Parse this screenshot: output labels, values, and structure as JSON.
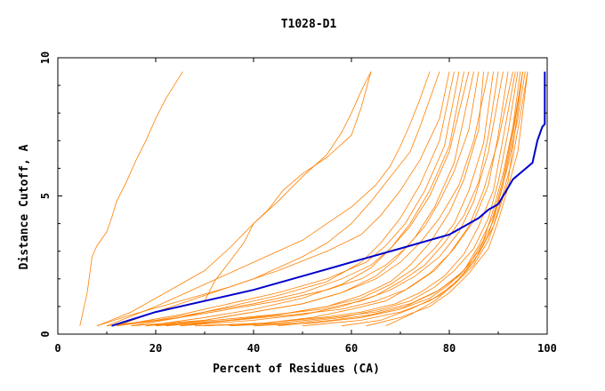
{
  "chart_data": {
    "type": "line",
    "title": "T1028-D1",
    "xlabel": "Percent of Residues (CA)",
    "ylabel": "Distance Cutoff, A",
    "xlim": [
      0,
      100
    ],
    "ylim": [
      0,
      10
    ],
    "xticks": [
      0,
      20,
      40,
      60,
      80,
      100
    ],
    "yticks": [
      0,
      5,
      10
    ],
    "grid": false,
    "legend": "none",
    "colors": {
      "highlight": "#0000cc",
      "others": "#ff8000"
    },
    "highlight": {
      "x": [
        11,
        20,
        30,
        40,
        50,
        60,
        70,
        80,
        83,
        86,
        88,
        90,
        91,
        92,
        93,
        95,
        97,
        98,
        99,
        99.5,
        99.5
      ],
      "y": [
        0.3,
        0.8,
        1.2,
        1.6,
        2.1,
        2.6,
        3.1,
        3.6,
        3.9,
        4.2,
        4.5,
        4.7,
        5.0,
        5.3,
        5.6,
        5.9,
        6.2,
        7.0,
        7.5,
        7.6,
        9.5
      ]
    },
    "others": [
      {
        "x": [
          4.5,
          6,
          7,
          8,
          10,
          11,
          12,
          14,
          16,
          18,
          20,
          22,
          25.5
        ],
        "y": [
          0.3,
          1.5,
          2.8,
          3.2,
          3.7,
          4.2,
          4.8,
          5.5,
          6.3,
          7.0,
          7.8,
          8.5,
          9.5
        ]
      },
      {
        "x": [
          8,
          15,
          22,
          30,
          35,
          40,
          45,
          50,
          55,
          58,
          60,
          62,
          64
        ],
        "y": [
          0.3,
          0.8,
          1.5,
          2.3,
          3.1,
          4.0,
          4.8,
          5.7,
          6.5,
          7.3,
          8.0,
          8.8,
          9.5
        ]
      },
      {
        "x": [
          30,
          32,
          35,
          38,
          40,
          43,
          46,
          50,
          55,
          60,
          62,
          64
        ],
        "y": [
          1.2,
          1.9,
          2.6,
          3.3,
          4.0,
          4.5,
          5.2,
          5.8,
          6.4,
          7.2,
          8.2,
          9.5
        ]
      },
      {
        "x": [
          10,
          20,
          30,
          40,
          50,
          55,
          60,
          65,
          68,
          70,
          72,
          74,
          76
        ],
        "y": [
          0.3,
          1.0,
          1.8,
          2.6,
          3.4,
          4.0,
          4.6,
          5.4,
          6.1,
          6.8,
          7.6,
          8.5,
          9.5
        ]
      },
      {
        "x": [
          12,
          20,
          30,
          40,
          50,
          55,
          60,
          64,
          68,
          72,
          74,
          76,
          78
        ],
        "y": [
          0.3,
          0.8,
          1.4,
          2.0,
          2.8,
          3.3,
          4.0,
          4.8,
          5.7,
          6.6,
          7.5,
          8.5,
          9.5
        ]
      },
      {
        "x": [
          8,
          15,
          25,
          35,
          45,
          55,
          62,
          66,
          70,
          74,
          78,
          80
        ],
        "y": [
          0.3,
          0.7,
          1.2,
          1.7,
          2.3,
          3.0,
          3.6,
          4.3,
          5.2,
          6.3,
          7.8,
          9.5
        ]
      },
      {
        "x": [
          15,
          25,
          35,
          45,
          55,
          62,
          66,
          70,
          74,
          78,
          81
        ],
        "y": [
          0.3,
          0.6,
          1.0,
          1.4,
          1.9,
          2.6,
          3.3,
          4.2,
          5.4,
          7.0,
          9.5
        ]
      },
      {
        "x": [
          12,
          25,
          35,
          45,
          55,
          63,
          67,
          71,
          75,
          79,
          82
        ],
        "y": [
          0.3,
          0.7,
          1.1,
          1.5,
          2.0,
          2.6,
          3.2,
          4.0,
          5.2,
          6.8,
          9.5
        ]
      },
      {
        "x": [
          18,
          30,
          40,
          50,
          58,
          64,
          68,
          72,
          76,
          80,
          83
        ],
        "y": [
          0.3,
          0.6,
          0.9,
          1.3,
          1.8,
          2.4,
          3.1,
          4.0,
          5.2,
          6.8,
          9.5
        ]
      },
      {
        "x": [
          10,
          20,
          30,
          40,
          50,
          58,
          64,
          68,
          72,
          76,
          80,
          84
        ],
        "y": [
          0.3,
          0.5,
          0.8,
          1.1,
          1.5,
          2.0,
          2.5,
          3.1,
          3.9,
          5.0,
          6.6,
          9.5
        ]
      },
      {
        "x": [
          20,
          30,
          40,
          50,
          58,
          65,
          69,
          73,
          77,
          81,
          85
        ],
        "y": [
          0.3,
          0.5,
          0.8,
          1.1,
          1.5,
          2.1,
          2.7,
          3.5,
          4.6,
          6.2,
          9.5
        ]
      },
      {
        "x": [
          12,
          25,
          35,
          45,
          55,
          62,
          67,
          71,
          75,
          78,
          81,
          84,
          86
        ],
        "y": [
          0.3,
          0.6,
          0.9,
          1.2,
          1.6,
          2.0,
          2.5,
          3.1,
          3.9,
          4.8,
          5.9,
          7.4,
          9.5
        ]
      },
      {
        "x": [
          25,
          35,
          45,
          55,
          62,
          68,
          72,
          76,
          80,
          83,
          86,
          87
        ],
        "y": [
          0.3,
          0.5,
          0.7,
          1.0,
          1.4,
          1.9,
          2.5,
          3.3,
          4.4,
          5.6,
          7.4,
          9.5
        ]
      },
      {
        "x": [
          15,
          30,
          40,
          50,
          58,
          65,
          70,
          74,
          78,
          82,
          85,
          88
        ],
        "y": [
          0.3,
          0.5,
          0.8,
          1.1,
          1.5,
          2.0,
          2.6,
          3.3,
          4.2,
          5.4,
          7.0,
          9.5
        ]
      },
      {
        "x": [
          20,
          35,
          45,
          55,
          62,
          68,
          73,
          77,
          81,
          84,
          87,
          89
        ],
        "y": [
          0.3,
          0.5,
          0.7,
          1.0,
          1.3,
          1.8,
          2.4,
          3.1,
          4.0,
          5.2,
          6.9,
          9.5
        ]
      },
      {
        "x": [
          25,
          40,
          50,
          58,
          65,
          70,
          75,
          79,
          83,
          86,
          88,
          90
        ],
        "y": [
          0.3,
          0.5,
          0.7,
          1.0,
          1.4,
          1.9,
          2.5,
          3.3,
          4.3,
          5.5,
          7.2,
          9.5
        ]
      },
      {
        "x": [
          18,
          32,
          44,
          54,
          62,
          68,
          73,
          78,
          82,
          85,
          88,
          91
        ],
        "y": [
          0.3,
          0.5,
          0.7,
          0.9,
          1.2,
          1.6,
          2.1,
          2.8,
          3.7,
          4.8,
          6.6,
          9.5
        ]
      },
      {
        "x": [
          30,
          42,
          52,
          60,
          67,
          72,
          77,
          81,
          85,
          88,
          90,
          92
        ],
        "y": [
          0.3,
          0.4,
          0.6,
          0.9,
          1.2,
          1.7,
          2.3,
          3.1,
          4.1,
          5.4,
          7.2,
          9.5
        ]
      },
      {
        "x": [
          22,
          36,
          48,
          58,
          65,
          71,
          76,
          80,
          84,
          87,
          90,
          93
        ],
        "y": [
          0.3,
          0.5,
          0.7,
          0.9,
          1.2,
          1.6,
          2.2,
          2.9,
          3.9,
          5.2,
          7.0,
          9.5
        ]
      },
      {
        "x": [
          28,
          42,
          54,
          62,
          69,
          74,
          79,
          83,
          86,
          89,
          91,
          93.5
        ],
        "y": [
          0.3,
          0.4,
          0.6,
          0.8,
          1.1,
          1.5,
          2.1,
          2.9,
          3.9,
          5.2,
          7.1,
          9.5
        ]
      },
      {
        "x": [
          35,
          48,
          58,
          66,
          72,
          77,
          81,
          85,
          88,
          90,
          92,
          94
        ],
        "y": [
          0.3,
          0.4,
          0.6,
          0.9,
          1.2,
          1.7,
          2.3,
          3.1,
          4.2,
          5.5,
          7.3,
          9.5
        ]
      },
      {
        "x": [
          40,
          52,
          62,
          70,
          76,
          80,
          84,
          87,
          89,
          91,
          93,
          94.5
        ],
        "y": [
          0.3,
          0.4,
          0.6,
          0.9,
          1.3,
          1.8,
          2.5,
          3.4,
          4.5,
          5.8,
          7.5,
          9.5
        ]
      },
      {
        "x": [
          30,
          45,
          56,
          65,
          72,
          78,
          83,
          86,
          89,
          91,
          93,
          95
        ],
        "y": [
          0.3,
          0.4,
          0.6,
          0.8,
          1.1,
          1.6,
          2.3,
          3.2,
          4.3,
          5.6,
          7.4,
          9.5
        ]
      },
      {
        "x": [
          45,
          56,
          64,
          71,
          77,
          82,
          86,
          89,
          91,
          93,
          95
        ],
        "y": [
          0.3,
          0.5,
          0.7,
          1.0,
          1.5,
          2.1,
          3.0,
          4.1,
          5.4,
          7.2,
          9.5
        ]
      },
      {
        "x": [
          50,
          62,
          70,
          76,
          81,
          85,
          88,
          90,
          92,
          94,
          95.5
        ],
        "y": [
          0.3,
          0.5,
          0.8,
          1.2,
          1.8,
          2.6,
          3.6,
          4.8,
          6.1,
          7.8,
          9.5
        ]
      },
      {
        "x": [
          58,
          66,
          72,
          78,
          82,
          86,
          89,
          91,
          93,
          94.5,
          96
        ],
        "y": [
          0.3,
          0.5,
          0.9,
          1.4,
          2.0,
          2.9,
          3.9,
          5.1,
          6.4,
          7.9,
          9.5
        ]
      },
      {
        "x": [
          63,
          70,
          76,
          80,
          84,
          88,
          90,
          92,
          94,
          95,
          96
        ],
        "y": [
          0.3,
          0.6,
          1.0,
          1.5,
          2.2,
          3.1,
          4.1,
          5.3,
          6.6,
          8.0,
          9.5
        ]
      },
      {
        "x": [
          67,
          72,
          77,
          81,
          85,
          88,
          90,
          92,
          93,
          94,
          95
        ],
        "y": [
          0.3,
          0.7,
          1.2,
          1.8,
          2.5,
          3.4,
          4.4,
          5.5,
          6.8,
          8.1,
          9.5
        ]
      }
    ]
  }
}
